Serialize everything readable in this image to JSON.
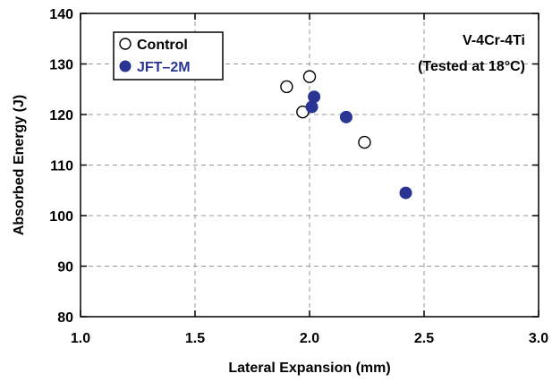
{
  "chart_data": {
    "type": "scatter",
    "xlabel": "Lateral Expansion (mm)",
    "ylabel": "Absorbed Energy (J)",
    "xlim": [
      1.0,
      3.0
    ],
    "ylim": [
      80,
      140
    ],
    "xticks": [
      "1.0",
      "1.5",
      "2.0",
      "2.5",
      "3.0"
    ],
    "yticks": [
      "80",
      "90",
      "100",
      "110",
      "120",
      "130",
      "140"
    ],
    "grid": true,
    "legend_position": "top-left",
    "annotation_lines": [
      "V-4Cr-4Ti",
      "(Tested at 18°C)"
    ],
    "series": [
      {
        "name": "Control",
        "marker": "open-circle",
        "color": "#000000",
        "points": [
          {
            "x": 1.9,
            "y": 125.5
          },
          {
            "x": 2.0,
            "y": 127.5
          },
          {
            "x": 1.97,
            "y": 120.5
          },
          {
            "x": 2.24,
            "y": 114.5
          }
        ]
      },
      {
        "name": "JFT–2M",
        "marker": "filled-circle",
        "color": "#2a3593",
        "points": [
          {
            "x": 2.02,
            "y": 123.5
          },
          {
            "x": 2.01,
            "y": 121.5
          },
          {
            "x": 2.16,
            "y": 119.5
          },
          {
            "x": 2.42,
            "y": 104.5
          }
        ]
      }
    ]
  }
}
